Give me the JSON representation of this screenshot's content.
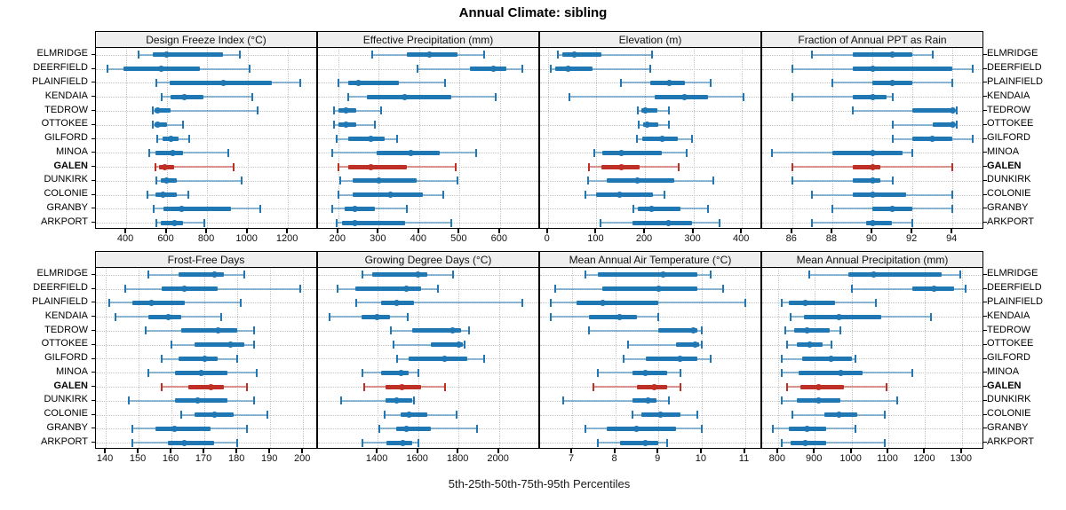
{
  "page": {
    "title": "Annual Climate: sibling",
    "xlabel": "5th-25th-50th-75th-95th Percentiles"
  },
  "colors": {
    "series_blue": "#1f77b4",
    "series_red": "#be3026",
    "grid": "#c6c6c6",
    "strip_bg": "#efefef",
    "border": "#000000"
  },
  "chart_data": {
    "type": "scatter",
    "variant": "five-number percentile interval dotplot (5th-25th-50th-75th-95th), dot = median, thick bar = 25th-75th, thin line with end caps = 5th-95th",
    "title": "Annual Climate: sibling",
    "xlabel": "5th-25th-50th-75th-95th Percentiles",
    "legend": "none",
    "grid": "dotted",
    "layout": {
      "nrow": 2,
      "ncol": 4
    },
    "percentiles": [
      5,
      25,
      50,
      75,
      95
    ],
    "categories": [
      "ELMRIDGE",
      "DEERFIELD",
      "PLAINFIELD",
      "KENDAIA",
      "TEDROW",
      "OTTOKEE",
      "GILFORD",
      "MINOA",
      "GALEN",
      "DUNKIRK",
      "COLONIE",
      "GRANBY",
      "ARKPORT"
    ],
    "highlight_category": "GALEN",
    "panels": [
      {
        "title": "Design Freeze Index (°C)",
        "row": 1,
        "col": 1,
        "xlim": [
          250,
          1340
        ],
        "ticks": [
          400,
          600,
          800,
          1000,
          1200
        ],
        "values": [
          [
            460,
            530,
            600,
            880,
            960
          ],
          [
            305,
            385,
            575,
            765,
            1010
          ],
          [
            550,
            615,
            880,
            1120,
            1260
          ],
          [
            575,
            620,
            685,
            780,
            1025
          ],
          [
            530,
            540,
            555,
            620,
            1050
          ],
          [
            530,
            540,
            555,
            600,
            680
          ],
          [
            555,
            580,
            620,
            660,
            710
          ],
          [
            515,
            545,
            630,
            680,
            905
          ],
          [
            545,
            560,
            590,
            635,
            930
          ],
          [
            550,
            570,
            600,
            650,
            970
          ],
          [
            505,
            545,
            580,
            650,
            705
          ],
          [
            535,
            585,
            675,
            920,
            1065
          ],
          [
            550,
            570,
            640,
            680,
            785
          ]
        ]
      },
      {
        "title": "Effective Precipitation (mm)",
        "row": 1,
        "col": 2,
        "xlim": [
          150,
          695
        ],
        "ticks": [
          200,
          300,
          400,
          500,
          600
        ],
        "values": [
          [
            285,
            370,
            425,
            495,
            560
          ],
          [
            395,
            525,
            585,
            615,
            655
          ],
          [
            200,
            225,
            250,
            350,
            465
          ],
          [
            225,
            270,
            365,
            480,
            590
          ],
          [
            190,
            200,
            220,
            245,
            305
          ],
          [
            190,
            200,
            220,
            245,
            290
          ],
          [
            195,
            225,
            280,
            315,
            345
          ],
          [
            185,
            295,
            380,
            450,
            540
          ],
          [
            200,
            225,
            280,
            370,
            490
          ],
          [
            205,
            235,
            300,
            395,
            495
          ],
          [
            200,
            235,
            330,
            410,
            460
          ],
          [
            185,
            215,
            240,
            290,
            370
          ],
          [
            195,
            210,
            240,
            365,
            480
          ]
        ]
      },
      {
        "title": "Elevation (m)",
        "row": 1,
        "col": 3,
        "xlim": [
          -16,
          438
        ],
        "ticks": [
          0,
          100,
          200,
          300,
          400
        ],
        "values": [
          [
            20,
            30,
            55,
            110,
            215
          ],
          [
            5,
            15,
            42,
            92,
            210
          ],
          [
            150,
            210,
            250,
            283,
            335
          ],
          [
            45,
            220,
            282,
            330,
            403
          ],
          [
            185,
            193,
            200,
            225,
            250
          ],
          [
            188,
            196,
            205,
            228,
            250
          ],
          [
            183,
            195,
            235,
            268,
            297
          ],
          [
            95,
            112,
            152,
            235,
            286
          ],
          [
            85,
            110,
            152,
            190,
            270
          ],
          [
            83,
            121,
            185,
            260,
            340
          ],
          [
            77,
            100,
            148,
            216,
            240
          ],
          [
            176,
            186,
            214,
            274,
            330
          ],
          [
            109,
            174,
            248,
            297,
            354
          ]
        ]
      },
      {
        "title": "Fraction of Annual PPT as Rain",
        "row": 1,
        "col": 4,
        "xlim": [
          84.5,
          95.5
        ],
        "ticks": [
          86,
          88,
          90,
          92,
          94
        ],
        "values": [
          [
            87,
            89,
            91,
            92,
            93
          ],
          [
            86,
            89,
            90,
            94,
            95
          ],
          [
            88,
            90,
            91,
            92,
            94
          ],
          [
            86,
            89,
            90,
            90.7,
            91
          ],
          [
            89,
            92,
            94,
            94.1,
            94.2
          ],
          [
            91,
            93,
            94,
            94.1,
            94.2
          ],
          [
            91,
            92,
            93,
            94,
            95
          ],
          [
            85,
            88,
            90,
            91.5,
            92
          ],
          [
            86,
            89,
            90,
            90.4,
            94
          ],
          [
            86,
            89,
            90,
            90.4,
            91
          ],
          [
            87,
            89,
            90,
            91.7,
            94
          ],
          [
            88,
            90,
            91,
            92,
            94
          ],
          [
            87,
            89.7,
            90,
            91,
            92
          ]
        ]
      },
      {
        "title": "Frost-Free Days",
        "row": 2,
        "col": 1,
        "xlim": [
          137,
          204
        ],
        "ticks": [
          140,
          150,
          160,
          170,
          180,
          190,
          200
        ],
        "values": [
          [
            153,
            162,
            173,
            176,
            182
          ],
          [
            146,
            157,
            164,
            174,
            199
          ],
          [
            141,
            148,
            154,
            164,
            181
          ],
          [
            143,
            153,
            159,
            163,
            175
          ],
          [
            152,
            163,
            174,
            180,
            185
          ],
          [
            160,
            167,
            178,
            182,
            185
          ],
          [
            157,
            162,
            170,
            174,
            180
          ],
          [
            153,
            161,
            169,
            177,
            186
          ],
          [
            157,
            165,
            172,
            176,
            183
          ],
          [
            147,
            161,
            168,
            177,
            185
          ],
          [
            163,
            167,
            173,
            179,
            189
          ],
          [
            148,
            155,
            161,
            172,
            183
          ],
          [
            148,
            159,
            164,
            173,
            180
          ]
        ]
      },
      {
        "title": "Growing Degree Days (°C)",
        "row": 2,
        "col": 2,
        "xlim": [
          1105,
          2195
        ],
        "ticks": [
          1400,
          1600,
          1800,
          2000
        ],
        "values": [
          [
            1325,
            1375,
            1600,
            1645,
            1775
          ],
          [
            1200,
            1290,
            1540,
            1615,
            1700
          ],
          [
            1295,
            1415,
            1495,
            1580,
            2115
          ],
          [
            1160,
            1320,
            1395,
            1460,
            1550
          ],
          [
            1465,
            1570,
            1770,
            1815,
            1850
          ],
          [
            1480,
            1665,
            1800,
            1820,
            1830
          ],
          [
            1495,
            1555,
            1730,
            1845,
            1925
          ],
          [
            1325,
            1415,
            1515,
            1555,
            1600
          ],
          [
            1335,
            1440,
            1520,
            1615,
            1735
          ],
          [
            1220,
            1440,
            1495,
            1570,
            1580
          ],
          [
            1435,
            1515,
            1555,
            1645,
            1790
          ],
          [
            1410,
            1490,
            1540,
            1665,
            1890
          ],
          [
            1325,
            1445,
            1525,
            1570,
            1600
          ]
        ]
      },
      {
        "title": "Mean Annual Air Temperature (°C)",
        "row": 2,
        "col": 3,
        "xlim": [
          6.26,
          11.36
        ],
        "ticks": [
          7,
          8,
          9,
          10,
          11
        ],
        "values": [
          [
            7.3,
            7.6,
            9.1,
            9.9,
            10.2
          ],
          [
            6.6,
            7.7,
            9.0,
            9.9,
            10.5
          ],
          [
            6.5,
            7.1,
            7.7,
            9.0,
            11.0
          ],
          [
            6.5,
            7.4,
            8.1,
            8.5,
            9.0
          ],
          [
            7.4,
            9.0,
            9.8,
            9.9,
            10.0
          ],
          [
            8.3,
            9.4,
            9.85,
            9.95,
            10.0
          ],
          [
            8.2,
            8.7,
            9.5,
            9.9,
            10.2
          ],
          [
            7.6,
            8.4,
            8.7,
            9.2,
            9.5
          ],
          [
            7.5,
            8.5,
            8.9,
            9.2,
            9.5
          ],
          [
            6.8,
            8.4,
            8.75,
            8.95,
            9.25
          ],
          [
            8.4,
            8.6,
            9.05,
            9.5,
            9.9
          ],
          [
            7.3,
            7.8,
            8.5,
            9.4,
            10.0
          ],
          [
            7.6,
            8.1,
            8.7,
            9.0,
            9.2
          ]
        ]
      },
      {
        "title": "Mean Annual Precipitation (mm)",
        "row": 2,
        "col": 4,
        "xlim": [
          757,
          1356
        ],
        "ticks": [
          800,
          900,
          1000,
          1100,
          1200,
          1300
        ],
        "values": [
          [
            885,
            990,
            1060,
            1245,
            1295
          ],
          [
            1000,
            1165,
            1225,
            1280,
            1310
          ],
          [
            810,
            830,
            875,
            955,
            1065
          ],
          [
            835,
            870,
            965,
            1080,
            1215
          ],
          [
            820,
            845,
            880,
            940,
            970
          ],
          [
            825,
            850,
            885,
            920,
            945
          ],
          [
            810,
            865,
            945,
            1000,
            1010
          ],
          [
            810,
            855,
            970,
            1030,
            1165
          ],
          [
            825,
            860,
            910,
            980,
            1095
          ],
          [
            810,
            850,
            910,
            970,
            1125
          ],
          [
            840,
            925,
            965,
            1015,
            1090
          ],
          [
            785,
            830,
            880,
            930,
            1010
          ],
          [
            810,
            835,
            875,
            930,
            1090
          ]
        ]
      }
    ]
  }
}
